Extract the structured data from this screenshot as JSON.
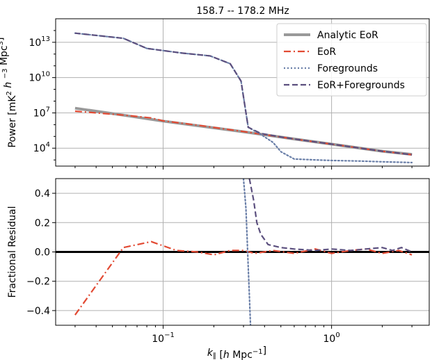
{
  "chart_data": [
    {
      "type": "line",
      "title": "158.7 -- 178.2 MHz",
      "xlabel": "k∥ [h Mpc⁻¹]",
      "ylabel": "Power [mK² h⁻³ Mpc³]",
      "xscale": "log",
      "yscale": "log",
      "xlim": [
        0.023,
        3.8
      ],
      "ylim": [
        300.0,
        1000000000000000.0
      ],
      "grid": true,
      "legend_position": "top-right",
      "x_ticks": [
        {
          "value": 0.1,
          "base": "10",
          "exp": "−1"
        },
        {
          "value": 1,
          "base": "10",
          "exp": "0"
        }
      ],
      "y_ticks": [
        {
          "value": 10000.0,
          "base": "10",
          "exp": "4"
        },
        {
          "value": 10000000.0,
          "base": "10",
          "exp": "7"
        },
        {
          "value": 10000000000.0,
          "base": "10",
          "exp": "10"
        },
        {
          "value": 10000000000000.0,
          "base": "10",
          "exp": "13"
        }
      ],
      "series": [
        {
          "name": "Analytic EoR",
          "color": "#999999",
          "style": "solid",
          "x": [
            0.03,
            0.06,
            0.1,
            0.3,
            0.6,
            1.0,
            2.0,
            3.0
          ],
          "y": [
            25000000.0,
            6000000.0,
            2000000.0,
            250000.0,
            60000.0,
            22000.0,
            5500.0,
            3000.0
          ]
        },
        {
          "name": "EoR",
          "color": "#e24a33",
          "style": "dashdot",
          "x": [
            0.03,
            0.06,
            0.085,
            0.1,
            0.16,
            0.3,
            0.6,
            1.0,
            2.0,
            3.0
          ],
          "y": [
            14000000.0,
            6200000.0,
            3700000.0,
            2100000.0,
            900000.0,
            260000.0,
            60000.0,
            22000.0,
            5500.0,
            2800.0
          ]
        },
        {
          "name": "Foregrounds",
          "color": "#6a7fa8",
          "style": "dotted",
          "x": [
            0.03,
            0.058,
            0.08,
            0.13,
            0.19,
            0.25,
            0.29,
            0.32,
            0.38,
            0.45,
            0.5,
            0.6,
            0.8,
            1.0,
            1.5,
            2.0,
            3.0
          ],
          "y": [
            60000000000000.0,
            22000000000000.0,
            3000000000000.0,
            1200000000000.0,
            700000000000.0,
            150000000000.0,
            5000000000.0,
            600000.0,
            150000.0,
            30000.0,
            5000.0,
            1200.0,
            1000.0,
            900.0,
            800.0,
            700.0,
            600.0
          ]
        },
        {
          "name": "EoR+Foregrounds",
          "color": "#5b4f7e",
          "style": "dashed",
          "x": [
            0.03,
            0.058,
            0.08,
            0.13,
            0.19,
            0.25,
            0.29,
            0.32,
            0.38,
            0.5,
            0.6,
            1.0,
            2.0,
            3.0
          ],
          "y": [
            60000000000000.0,
            22000000000000.0,
            3000000000000.0,
            1200000000000.0,
            700000000000.0,
            150000000000.0,
            5000000000.0,
            600000.0,
            180000.0,
            90000.0,
            60000.0,
            22000.0,
            5500.0,
            2800.0
          ]
        }
      ]
    },
    {
      "type": "line",
      "xlabel": "k∥ [h Mpc⁻¹]",
      "ylabel": "Fractional Residual",
      "xscale": "log",
      "xlim": [
        0.023,
        3.8
      ],
      "ylim": [
        -0.5,
        0.5
      ],
      "grid": true,
      "x_ticks": [
        {
          "value": 0.1,
          "base": "10",
          "exp": "−1"
        },
        {
          "value": 1,
          "base": "10",
          "exp": "0"
        }
      ],
      "y_ticks": [
        {
          "value": -0.4,
          "label": "−0.4"
        },
        {
          "value": -0.2,
          "label": "−0.2"
        },
        {
          "value": 0.0,
          "label": "0.0"
        },
        {
          "value": 0.2,
          "label": "0.2"
        },
        {
          "value": 0.4,
          "label": "0.4"
        }
      ],
      "reference_line": {
        "y": 0.0,
        "color": "#000000"
      },
      "series": [
        {
          "name": "EoR",
          "color": "#e24a33",
          "style": "dashdot",
          "x": [
            0.03,
            0.058,
            0.085,
            0.12,
            0.16,
            0.2,
            0.25,
            0.3,
            0.35,
            0.45,
            0.6,
            0.8,
            1.0,
            1.3,
            1.6,
            2.0,
            2.5,
            3.0
          ],
          "y": [
            -0.43,
            0.03,
            0.07,
            0.01,
            0.0,
            -0.02,
            0.01,
            0.01,
            -0.01,
            0.01,
            -0.01,
            0.02,
            -0.01,
            0.01,
            0.02,
            -0.01,
            0.01,
            -0.02
          ]
        },
        {
          "name": "Foregrounds",
          "color": "#6a7fa8",
          "style": "dotted",
          "x": [
            0.3,
            0.31,
            0.315,
            0.32,
            0.325,
            0.33
          ],
          "y": [
            0.5,
            0.3,
            0.1,
            -0.1,
            -0.3,
            -0.5
          ]
        },
        {
          "name": "EoR+Foregrounds",
          "color": "#5b4f7e",
          "style": "dashed",
          "x": [
            0.325,
            0.345,
            0.36,
            0.38,
            0.42,
            0.5,
            0.6,
            0.8,
            1.0,
            1.3,
            1.6,
            2.0,
            2.3,
            2.6,
            3.0
          ],
          "y": [
            0.5,
            0.35,
            0.2,
            0.12,
            0.05,
            0.03,
            0.02,
            0.01,
            0.02,
            0.01,
            0.02,
            0.03,
            0.01,
            0.03,
            0.0
          ]
        }
      ]
    }
  ]
}
